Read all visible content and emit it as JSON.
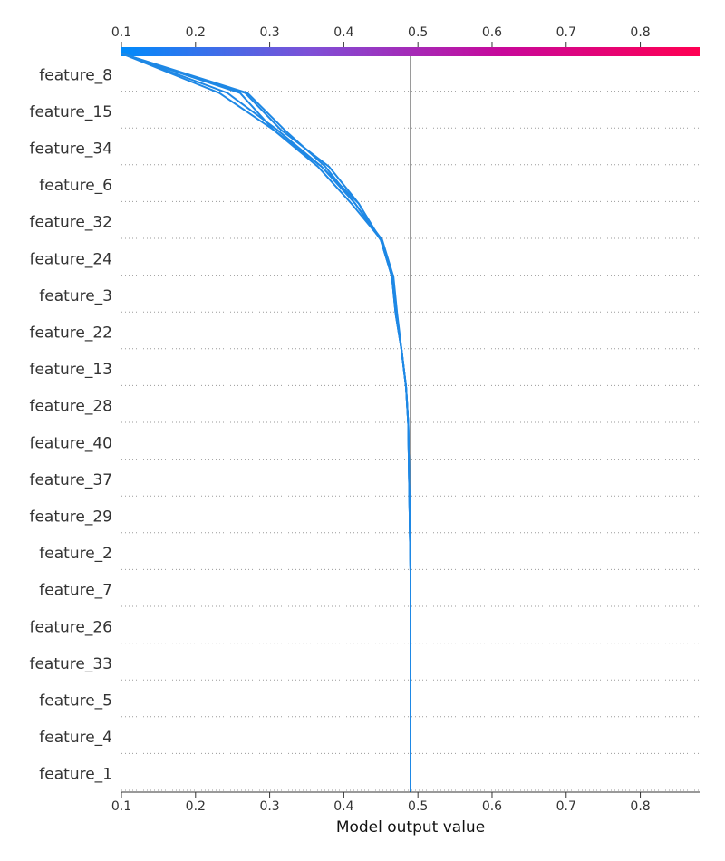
{
  "chart_data": {
    "type": "line",
    "subtype": "decision_plot",
    "xlabel": "Model output value",
    "xlim": [
      0.1,
      0.88
    ],
    "xticks": [
      0.1,
      0.2,
      0.3,
      0.4,
      0.5,
      0.6,
      0.7,
      0.8
    ],
    "xtick_labels": [
      "0.1",
      "0.2",
      "0.3",
      "0.4",
      "0.5",
      "0.6",
      "0.7",
      "0.8"
    ],
    "base_value": 0.49,
    "features": [
      "feature_8",
      "feature_15",
      "feature_34",
      "feature_6",
      "feature_32",
      "feature_24",
      "feature_3",
      "feature_22",
      "feature_13",
      "feature_28",
      "feature_40",
      "feature_37",
      "feature_29",
      "feature_2",
      "feature_7",
      "feature_26",
      "feature_33",
      "feature_5",
      "feature_4",
      "feature_1"
    ],
    "colorbar": {
      "range": [
        0.1,
        0.88
      ],
      "colors": [
        "#008bfb",
        "#7f4fd6",
        "#c8089a",
        "#ff0052"
      ]
    },
    "grid": "dotted horizontal",
    "line_color": "#1e88e5",
    "series": [
      {
        "values": [
          0.49,
          0.49,
          0.49,
          0.487,
          0.484,
          0.478,
          0.47,
          0.465,
          0.45,
          0.42,
          0.38,
          0.315,
          0.267,
          0.1
        ]
      },
      {
        "values": [
          0.49,
          0.49,
          0.49,
          0.487,
          0.484,
          0.478,
          0.47,
          0.465,
          0.45,
          0.415,
          0.375,
          0.32,
          0.27,
          0.1
        ]
      },
      {
        "values": [
          0.49,
          0.49,
          0.49,
          0.487,
          0.484,
          0.478,
          0.47,
          0.465,
          0.45,
          0.42,
          0.37,
          0.31,
          0.243,
          0.1
        ]
      },
      {
        "values": [
          0.49,
          0.49,
          0.49,
          0.487,
          0.484,
          0.478,
          0.472,
          0.467,
          0.452,
          0.415,
          0.37,
          0.305,
          0.232,
          0.1
        ]
      },
      {
        "values": [
          0.49,
          0.49,
          0.49,
          0.487,
          0.484,
          0.478,
          0.471,
          0.466,
          0.451,
          0.41,
          0.365,
          0.305,
          0.26,
          0.1
        ]
      }
    ]
  }
}
